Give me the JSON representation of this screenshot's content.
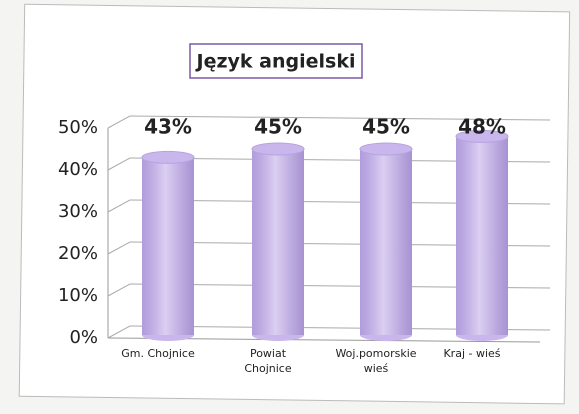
{
  "chart_data": {
    "type": "bar",
    "title": "Język angielski",
    "categories": [
      "Gm. Chojnice",
      "Powiat Chojnice",
      "Woj.pomorskie wieś",
      "Kraj - wieś"
    ],
    "values": [
      43,
      45,
      45,
      48
    ],
    "value_labels": [
      "43%",
      "45%",
      "45%",
      "48%"
    ],
    "color": "#c8b6ec",
    "ylim": [
      0,
      50
    ],
    "yticks": [
      {
        "value": 0,
        "label": "0%"
      },
      {
        "value": 10,
        "label": "10%"
      },
      {
        "value": 20,
        "label": "20%"
      },
      {
        "value": 30,
        "label": "30%"
      },
      {
        "value": 40,
        "label": "40%"
      },
      {
        "value": 50,
        "label": "50%"
      }
    ],
    "grid": true
  }
}
